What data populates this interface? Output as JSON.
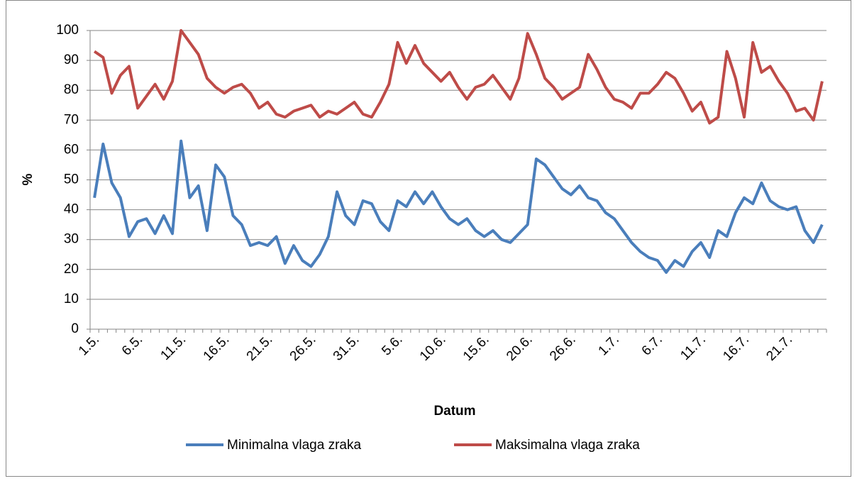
{
  "chart_data": {
    "type": "line",
    "xlabel": "Datum",
    "ylabel": "%",
    "categories": [
      "1.5.",
      null,
      null,
      null,
      null,
      "6.5.",
      null,
      null,
      null,
      null,
      "11.5.",
      null,
      null,
      null,
      null,
      "16.5.",
      null,
      null,
      null,
      null,
      "21.5.",
      null,
      null,
      null,
      null,
      "26.5.",
      null,
      null,
      null,
      null,
      "31.5.",
      null,
      null,
      null,
      null,
      "5.6.",
      null,
      null,
      null,
      null,
      "10.6.",
      null,
      null,
      null,
      null,
      "15.6.",
      null,
      null,
      null,
      null,
      "20.6.",
      null,
      null,
      null,
      null,
      "26.6.",
      null,
      null,
      null,
      null,
      "1.7.",
      null,
      null,
      null,
      null,
      "6.7.",
      null,
      null,
      null,
      null,
      "11.7.",
      null,
      null,
      null,
      null,
      "16.7.",
      null,
      null,
      null,
      null,
      "21.7.",
      null,
      null,
      null,
      null
    ],
    "series": [
      {
        "name": "Minimalna vlaga zraka",
        "color": "#4a7ebb",
        "values": [
          44,
          62,
          49,
          44,
          31,
          36,
          37,
          32,
          38,
          32,
          63,
          44,
          48,
          33,
          55,
          51,
          38,
          35,
          28,
          29,
          28,
          31,
          22,
          28,
          23,
          21,
          25,
          31,
          46,
          38,
          35,
          43,
          42,
          36,
          33,
          43,
          41,
          46,
          42,
          46,
          41,
          37,
          35,
          37,
          33,
          31,
          33,
          30,
          29,
          32,
          35,
          57,
          55,
          51,
          47,
          45,
          48,
          44,
          43,
          39,
          37,
          33,
          29,
          26,
          24,
          23,
          19,
          23,
          21,
          26,
          29,
          24,
          33,
          31,
          39,
          44,
          42,
          49,
          43,
          41,
          40,
          41,
          33,
          29,
          35
        ]
      },
      {
        "name": "Maksimalna vlaga zraka",
        "color": "#be4b48",
        "values": [
          93,
          91,
          79,
          85,
          88,
          74,
          78,
          82,
          77,
          83,
          100,
          96,
          92,
          84,
          81,
          79,
          81,
          82,
          79,
          74,
          76,
          72,
          71,
          73,
          74,
          75,
          71,
          73,
          72,
          74,
          76,
          72,
          71,
          76,
          82,
          96,
          89,
          95,
          89,
          86,
          83,
          86,
          81,
          77,
          81,
          82,
          85,
          81,
          77,
          84,
          99,
          92,
          84,
          81,
          77,
          79,
          81,
          92,
          87,
          81,
          77,
          76,
          74,
          79,
          79,
          82,
          86,
          84,
          79,
          73,
          76,
          69,
          71,
          93,
          84,
          71,
          96,
          86,
          88,
          83,
          79,
          73,
          74,
          70,
          83
        ]
      }
    ],
    "ylim": [
      0,
      100
    ],
    "yticks": [
      0,
      10,
      20,
      30,
      40,
      50,
      60,
      70,
      80,
      90,
      100
    ],
    "grid": true
  }
}
